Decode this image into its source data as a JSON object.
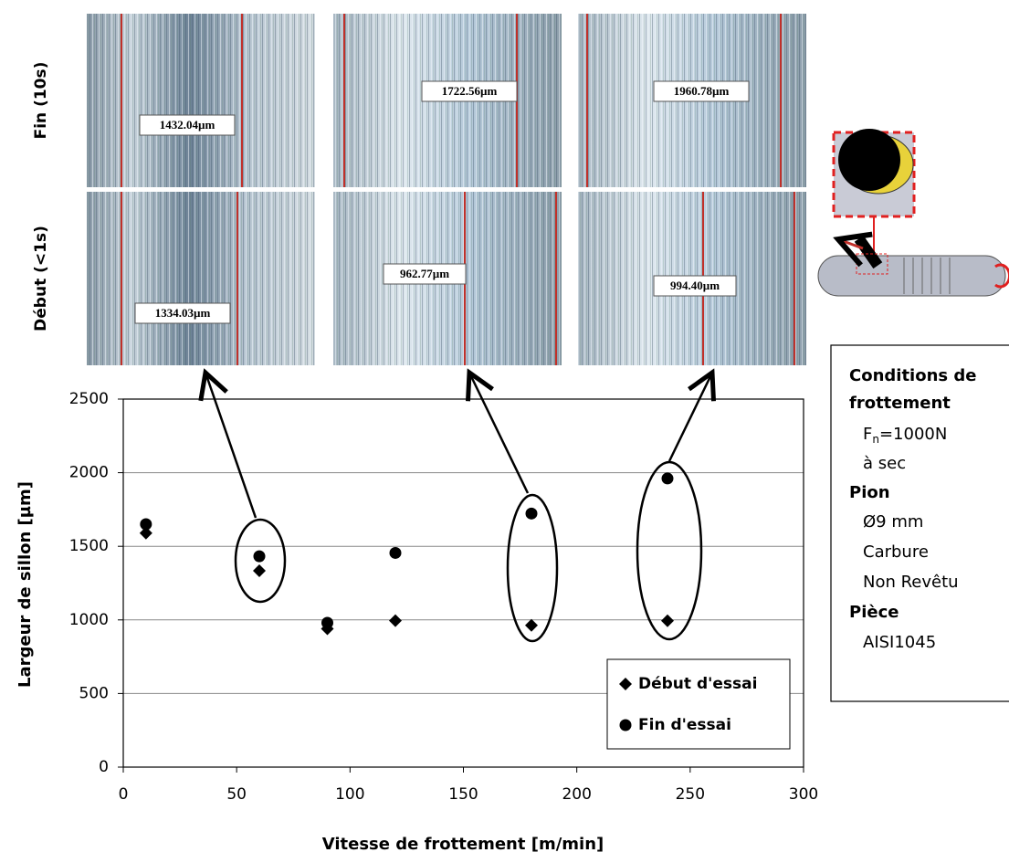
{
  "chart_data": {
    "type": "scatter",
    "x_label": "Vitesse de frottement [m/min]",
    "y_label": "Largeur de sillon [µm]",
    "x": [
      10,
      60,
      90,
      120,
      180,
      240
    ],
    "series": [
      {
        "name": "Début d'essai",
        "color": "#000000",
        "marker": "diamond",
        "values": [
          1590,
          1334.03,
          940,
          995,
          962.77,
          994.4
        ]
      },
      {
        "name": "Fin d'essai",
        "color": "#000000",
        "marker": "circle",
        "values": [
          1650,
          1432.04,
          980,
          1455,
          1722.56,
          1960.78
        ]
      }
    ],
    "xlim": [
      0,
      300
    ],
    "xticks": [
      0,
      50,
      100,
      150,
      200,
      250,
      300
    ],
    "ylim": [
      0,
      2500
    ],
    "yticks": [
      0,
      500,
      1000,
      1500,
      2000,
      2500
    ],
    "grid": true,
    "legend": "lower right"
  },
  "micrographs": {
    "rows": [
      "Fin (10s)",
      "Début (<1s)"
    ],
    "labels": [
      [
        "1432.04µm",
        "1722.56µm",
        "1960.78µm"
      ],
      [
        "1334.03µm",
        "962.77µm",
        "994.40µm"
      ]
    ]
  },
  "conditions": {
    "title": [
      "Conditions de",
      "frottement"
    ],
    "force": {
      "symbol": "F",
      "subscript": "n",
      "value": "=1000N"
    },
    "environment": "à sec",
    "pin": {
      "title": "Pion",
      "lines": [
        "Ø9 mm",
        "Carbure",
        "Non Revêtu"
      ]
    },
    "part": {
      "title": "Pièce",
      "lines": [
        "AISI1045"
      ]
    }
  }
}
